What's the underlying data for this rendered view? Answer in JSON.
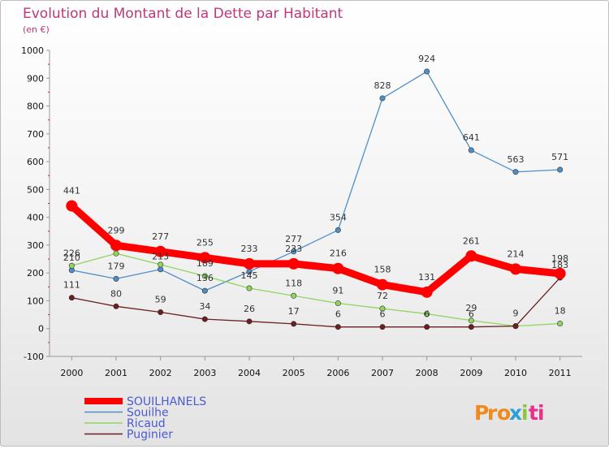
{
  "chart_data": {
    "type": "line",
    "title": "Evolution du Montant de la Dette par Habitant",
    "subtitle": "(en €)",
    "xlabel": "",
    "ylabel": "",
    "categories": [
      "2000",
      "2001",
      "2002",
      "2003",
      "2004",
      "2005",
      "2006",
      "2007",
      "2008",
      "2009",
      "2010",
      "2011"
    ],
    "ylim": [
      -100,
      1000
    ],
    "yticks": [
      -100,
      0,
      100,
      200,
      300,
      400,
      500,
      600,
      700,
      800,
      900,
      1000
    ],
    "grid": false,
    "legend_position": "bottom-left",
    "series": [
      {
        "name": "SOUILHANELS",
        "color": "#ff0000",
        "values": [
          441,
          299,
          277,
          255,
          233,
          233,
          216,
          158,
          131,
          261,
          214,
          198
        ],
        "labels": [
          "441",
          "299",
          "277",
          "255",
          "233",
          "233",
          "216",
          "158",
          "131",
          "261",
          "214",
          "198"
        ]
      },
      {
        "name": "Souilhe",
        "color": "#4f8fc9",
        "values": [
          210,
          179,
          213,
          136,
          205,
          277,
          354,
          828,
          924,
          641,
          563,
          571
        ],
        "labels": [
          "210",
          "179",
          "213",
          "136",
          "",
          "277",
          "354",
          "828",
          "924",
          "641",
          "563",
          "571"
        ]
      },
      {
        "name": "Ricaud",
        "color": "#8fd660",
        "values": [
          226,
          270,
          230,
          189,
          145,
          118,
          91,
          72,
          53,
          29,
          9,
          18
        ],
        "labels": [
          "226",
          "",
          "",
          "189",
          "145",
          "118",
          "91",
          "72",
          "",
          "29",
          "",
          "18"
        ]
      },
      {
        "name": "Puginier",
        "color": "#6b1f1f",
        "values": [
          111,
          80,
          59,
          34,
          26,
          17,
          6,
          6,
          6,
          6,
          9,
          183
        ],
        "labels": [
          "111",
          "80",
          "59",
          "34",
          "26",
          "17",
          "6",
          "6",
          "6",
          "6",
          "9",
          "183"
        ]
      }
    ]
  },
  "logo": {
    "text": "Proxiti",
    "colors": [
      "#f08a1c",
      "#2aa0d8",
      "#8cc63f",
      "#e8308c"
    ]
  }
}
